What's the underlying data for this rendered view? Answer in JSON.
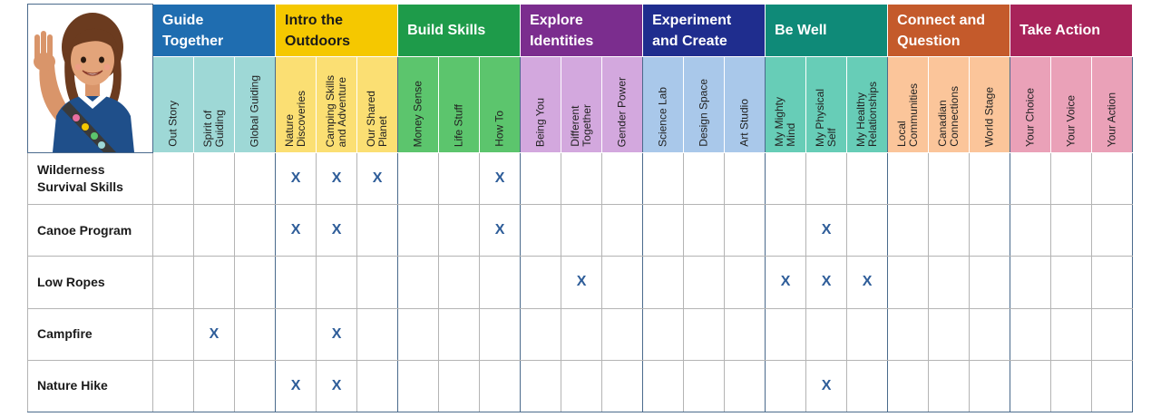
{
  "colors": {
    "mark": "#2e5d99",
    "grid_line": "#b4b4b4",
    "outline": "#4a6a8c"
  },
  "logo": {
    "icon": "girl-guide-saluting-illustration"
  },
  "themes": [
    {
      "label": "Guide\nTogether",
      "color": "#1f6db0",
      "sub_color": "#9ed8d6",
      "text": "light",
      "subs": [
        "Out Story",
        "Spirit of\nGuiding",
        "Global Guiding"
      ]
    },
    {
      "label": "Intro the\nOutdoors",
      "color": "#f5c800",
      "sub_color": "#fbdf73",
      "text": "dark",
      "subs": [
        "Nature\nDiscoveries",
        "Camping Skills\nand Adventure",
        "Our Shared\nPlanet"
      ]
    },
    {
      "label": "Build Skills",
      "color": "#1e9b4a",
      "sub_color": "#5cc56d",
      "text": "light",
      "subs": [
        "Money Sense",
        "Life Stuff",
        "How To"
      ]
    },
    {
      "label": "Explore\nIdentities",
      "color": "#7b2d8e",
      "sub_color": "#d3a8de",
      "text": "light",
      "subs": [
        "Being You",
        "Different\nTogether",
        "Gender Power"
      ]
    },
    {
      "label": "Experiment\nand Create",
      "color": "#1f2d8e",
      "sub_color": "#a9c8ea",
      "text": "light",
      "subs": [
        "Science Lab",
        "Design Space",
        "Art Studio"
      ]
    },
    {
      "label": "Be Well",
      "color": "#0f8a78",
      "sub_color": "#67cdb7",
      "text": "light",
      "subs": [
        "My Mighty\nMind",
        "My Physical\nSelf",
        "My Healthy\nRelationships"
      ]
    },
    {
      "label": "Connect and\nQuestion",
      "color": "#c45a2b",
      "sub_color": "#fbc59a",
      "text": "light",
      "subs": [
        "Local\nCommunities",
        "Canadian\nConnections",
        "World Stage"
      ]
    },
    {
      "label": "Take Action",
      "color": "#a8235a",
      "sub_color": "#eaa1b8",
      "text": "light",
      "subs": [
        "Your Choice",
        "Your Voice",
        "Your Action"
      ]
    }
  ],
  "mark_symbol": "X",
  "activities": [
    {
      "name": "Wilderness\nSurvival Skills",
      "marks": [
        3,
        4,
        5,
        8
      ]
    },
    {
      "name": "Canoe Program",
      "marks": [
        3,
        4,
        8,
        16
      ]
    },
    {
      "name": "Low Ropes",
      "marks": [
        10,
        15,
        16,
        17
      ]
    },
    {
      "name": "Campfire",
      "marks": [
        1,
        4
      ]
    },
    {
      "name": "Nature Hike",
      "marks": [
        3,
        4,
        16
      ]
    }
  ]
}
